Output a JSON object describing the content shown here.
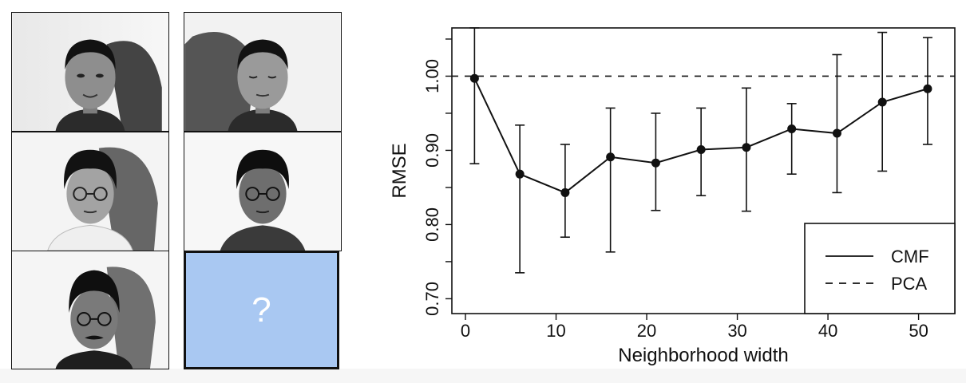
{
  "faces": [
    {
      "id": "face-1",
      "features": "plain"
    },
    {
      "id": "face-2",
      "features": "eyes-closed"
    },
    {
      "id": "face-3",
      "features": "glasses"
    },
    {
      "id": "face-4",
      "features": "glasses"
    },
    {
      "id": "face-5",
      "features": "glasses-moustache"
    }
  ],
  "query_tile": {
    "mark": "?",
    "color": "#a9c8f2"
  },
  "chart_data": {
    "type": "line",
    "xlabel": "Neighborhood width",
    "ylabel": "RMSE",
    "xlim": [
      -1.5,
      54
    ],
    "ylim": [
      0.68,
      1.065
    ],
    "x_ticks": [
      0,
      10,
      20,
      30,
      40,
      50
    ],
    "y_ticks": [
      0.7,
      0.8,
      0.9,
      1.0
    ],
    "y_tick_labels": [
      "0.70",
      "0.80",
      "0.90",
      "1.00"
    ],
    "x_tick_labels": [
      "0",
      "10",
      "20",
      "30",
      "40",
      "50"
    ],
    "grid": false,
    "legend_position": "bottom-right",
    "series": [
      {
        "name": "CMF",
        "style": "solid",
        "x": [
          1,
          6,
          11,
          16,
          21,
          26,
          31,
          36,
          41,
          46,
          51
        ],
        "y": [
          0.997,
          0.868,
          0.843,
          0.891,
          0.883,
          0.901,
          0.904,
          0.929,
          0.923,
          0.965,
          0.983
        ],
        "err_low": [
          0.882,
          0.735,
          0.783,
          0.763,
          0.819,
          0.839,
          0.818,
          0.868,
          0.843,
          0.872,
          0.908
        ],
        "err_high": [
          1.065,
          0.934,
          0.908,
          0.957,
          0.95,
          0.957,
          0.984,
          0.963,
          1.029,
          1.059,
          1.052
        ]
      },
      {
        "name": "PCA",
        "style": "dashed",
        "y_constant": 1.0
      }
    ]
  }
}
